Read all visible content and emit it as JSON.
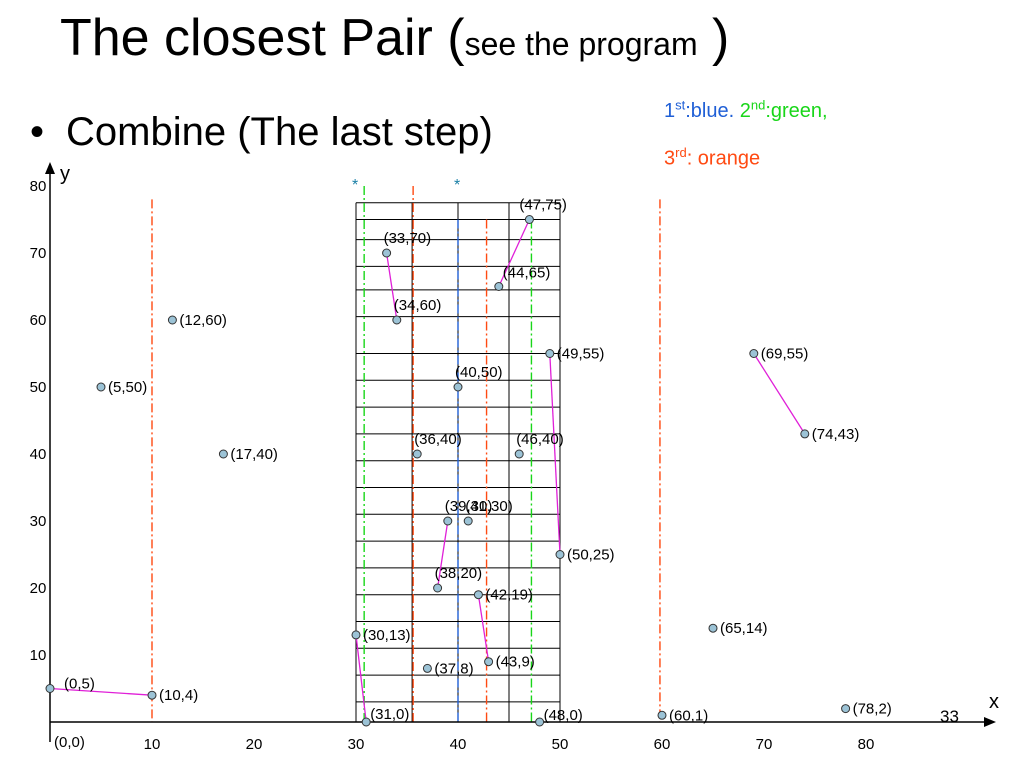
{
  "slide": {
    "title_main": "The closest Pair (",
    "title_small": "see the program",
    "title_end": " )",
    "bullet_dot": "•",
    "bullet_text": "Combine (The last step)",
    "page_number": "33"
  },
  "legend": {
    "l1_n1": "1",
    "l1_s1": "st",
    "l1_t1": ":blue.",
    "l1_n2": "2",
    "l1_s2": "nd",
    "l1_t2": ":green,",
    "l2_n": "3",
    "l2_s": "rd",
    "l2_t": ": orange",
    "colors": {
      "blue": "#1f5fd6",
      "green": "#19d619",
      "orange": "#ff4a12",
      "pair_line": "#e020d8",
      "point_fill": "#9cc3d6"
    }
  },
  "chart_data": {
    "type": "scatter",
    "xlabel": "x",
    "ylabel": "y",
    "origin_label": "(0,0)",
    "x_ticks": [
      "10",
      "20",
      "30",
      "40",
      "50",
      "60",
      "70",
      "80"
    ],
    "y_ticks": [
      "10",
      "20",
      "30",
      "40",
      "50",
      "60",
      "70",
      "80"
    ],
    "xlim": [
      0,
      92
    ],
    "ylim": [
      0,
      82
    ],
    "points": [
      {
        "x": 0,
        "y": 5,
        "label": "(0,5)"
      },
      {
        "x": 10,
        "y": 4,
        "label": "(10,4)"
      },
      {
        "x": 5,
        "y": 50,
        "label": "(5,50)"
      },
      {
        "x": 12,
        "y": 60,
        "label": "(12,60)"
      },
      {
        "x": 17,
        "y": 40,
        "label": "(17,40)"
      },
      {
        "x": 30,
        "y": 13,
        "label": "(30,13)"
      },
      {
        "x": 31,
        "y": 0,
        "label": "(31,0)"
      },
      {
        "x": 33,
        "y": 70,
        "label": "(33,70)"
      },
      {
        "x": 34,
        "y": 60,
        "label": "(34,60)"
      },
      {
        "x": 36,
        "y": 40,
        "label": "(36,40)"
      },
      {
        "x": 37,
        "y": 8,
        "label": "(37,8)"
      },
      {
        "x": 38,
        "y": 20,
        "label": "(38,20)"
      },
      {
        "x": 39,
        "y": 30,
        "label": "(39,30)"
      },
      {
        "x": 40,
        "y": 50,
        "label": "(40,50)"
      },
      {
        "x": 41,
        "y": 30,
        "label": "(41,30)"
      },
      {
        "x": 42,
        "y": 19,
        "label": "(42,19)"
      },
      {
        "x": 43,
        "y": 9,
        "label": "(43,9)"
      },
      {
        "x": 44,
        "y": 65,
        "label": "(44,65)"
      },
      {
        "x": 46,
        "y": 40,
        "label": "(46,40)"
      },
      {
        "x": 47,
        "y": 75,
        "label": "(47,75)"
      },
      {
        "x": 48,
        "y": 0,
        "label": "(48,0)"
      },
      {
        "x": 49,
        "y": 55,
        "label": "(49,55)"
      },
      {
        "x": 50,
        "y": 25,
        "label": "(50,25)"
      },
      {
        "x": 60,
        "y": 1,
        "label": "(60,1)"
      },
      {
        "x": 65,
        "y": 14,
        "label": "(65,14)"
      },
      {
        "x": 69,
        "y": 55,
        "label": "(69,55)"
      },
      {
        "x": 74,
        "y": 43,
        "label": "(74,43)"
      },
      {
        "x": 78,
        "y": 2,
        "label": "(78,2)"
      }
    ],
    "pairs": [
      [
        [
          0,
          5
        ],
        [
          10,
          4
        ]
      ],
      [
        [
          69,
          55
        ],
        [
          74,
          43
        ]
      ],
      [
        [
          33,
          70
        ],
        [
          34,
          60
        ]
      ],
      [
        [
          44,
          65
        ],
        [
          47,
          75
        ]
      ],
      [
        [
          49,
          55
        ],
        [
          50,
          25
        ]
      ],
      [
        [
          38,
          20
        ],
        [
          39,
          30
        ]
      ],
      [
        [
          42,
          19
        ],
        [
          43,
          9
        ]
      ],
      [
        [
          30,
          13
        ],
        [
          31,
          0
        ]
      ]
    ],
    "dividers": [
      {
        "x": 10,
        "color": "orange",
        "ymax": 78
      },
      {
        "x": 30.8,
        "color": "green",
        "ymax": 80
      },
      {
        "x": 35.6,
        "color": "orange",
        "ymax": 80
      },
      {
        "x": 40,
        "color": "blue",
        "ymax": 75
      },
      {
        "x": 42.8,
        "color": "orange",
        "ymax": 75
      },
      {
        "x": 47.2,
        "color": "green",
        "ymax": 75
      },
      {
        "x": 59.8,
        "color": "orange",
        "ymax": 78
      }
    ],
    "strip_x": [
      30,
      50
    ],
    "strip_h_y": [
      77.5,
      75,
      72,
      68,
      64.5,
      60.5,
      55,
      51,
      47,
      43,
      39,
      35,
      31,
      27,
      23,
      19,
      15,
      11,
      7,
      3
    ],
    "strip_v_x": [
      30,
      35.5,
      40,
      45,
      50
    ],
    "star_x": [
      30,
      40
    ],
    "star_label": "*"
  }
}
